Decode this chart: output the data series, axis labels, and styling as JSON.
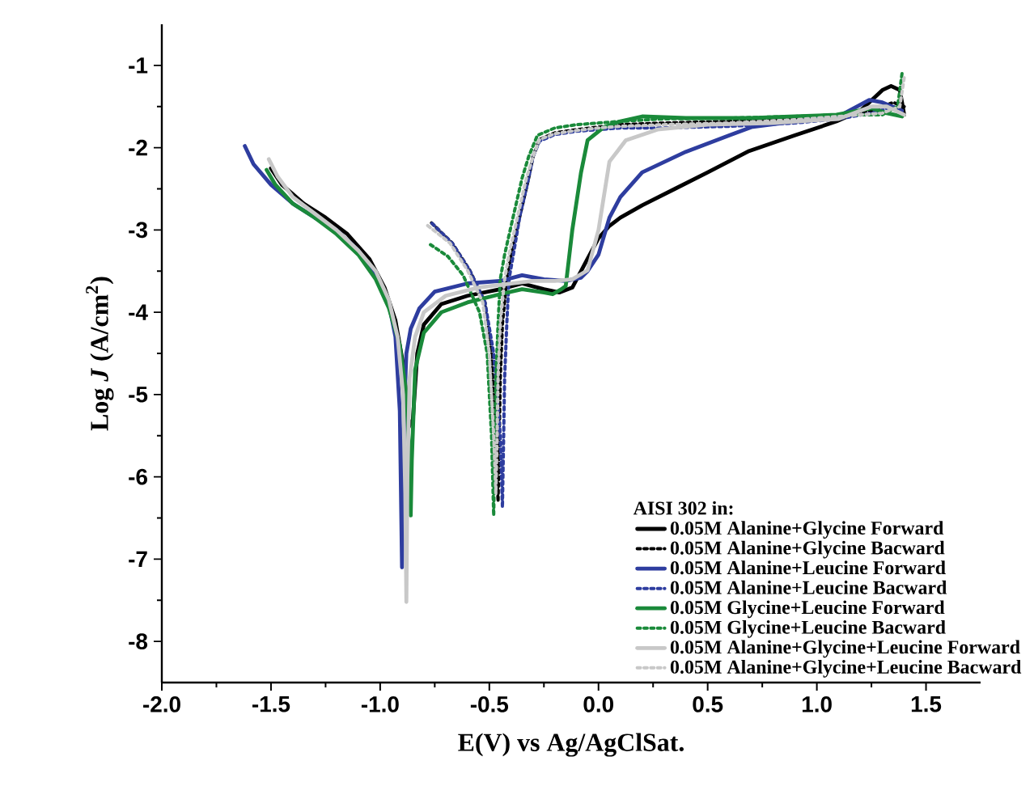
{
  "chart_data": {
    "type": "line",
    "xlabel": "E(V) vs Ag/AgClSat.",
    "ylabel": "Log *J* (A/cm$^{2}$)",
    "legend_title": "AISI 302 in:",
    "legend": "bottom right",
    "grid": false,
    "xlim": [
      -2.0,
      1.75
    ],
    "ylim": [
      -8.5,
      -0.5
    ],
    "xticks": [
      {
        "value": -2,
        "label": "-2.0"
      },
      {
        "value": -1.5,
        "label": "-1.5"
      },
      {
        "value": -1,
        "label": "-1.0"
      },
      {
        "value": -0.5,
        "label": "-0.5"
      },
      {
        "value": 0,
        "label": "0.0"
      },
      {
        "value": 0.5,
        "label": "0.5"
      },
      {
        "value": 1,
        "label": "1.0"
      },
      {
        "value": 1.5,
        "label": "1.5"
      }
    ],
    "yticks": [
      -8,
      -7,
      -6,
      -5,
      -4,
      -3,
      -2,
      -1
    ],
    "series": [
      {
        "name": "0.05M Alanine+Glycine Forward",
        "color": "#000000",
        "line_style": "solid",
        "x": [
          -1.5,
          -1.45,
          -1.35,
          -1.25,
          -1.15,
          -1.05,
          -0.98,
          -0.93,
          -0.89,
          -0.87,
          -0.86,
          -0.85,
          -0.83,
          -0.8,
          -0.72,
          -0.6,
          -0.45,
          -0.35,
          -0.25,
          -0.18,
          -0.12,
          -0.05,
          0.0,
          0.05,
          0.1,
          0.2,
          0.35,
          0.5,
          0.69,
          0.9,
          1.09,
          1.2,
          1.3,
          1.34,
          1.38,
          1.4
        ],
        "values": [
          -2.25,
          -2.45,
          -2.68,
          -2.85,
          -3.05,
          -3.35,
          -3.7,
          -4.1,
          -4.7,
          -5.4,
          null,
          -5.3,
          -4.5,
          -4.15,
          -3.9,
          -3.8,
          -3.72,
          -3.65,
          -3.72,
          -3.76,
          -3.7,
          -3.35,
          -3.1,
          -2.95,
          -2.85,
          -2.7,
          -2.5,
          -2.3,
          -2.04,
          -1.85,
          -1.68,
          -1.55,
          -1.3,
          -1.25,
          -1.3,
          -1.6
        ]
      },
      {
        "name": "0.05M Alanine+Glycine Bacward",
        "color": "#000000",
        "line_style": "dotted",
        "x": [
          1.4,
          1.35,
          1.25,
          1.1,
          0.9,
          0.6,
          0.3,
          0.1,
          0.0,
          -0.1,
          -0.2,
          -0.27,
          -0.3,
          -0.32,
          -0.36,
          -0.4,
          -0.42,
          -0.44,
          -0.45,
          -0.455,
          -0.46,
          -0.47,
          -0.49,
          -0.52,
          -0.59,
          -0.67,
          -0.77
        ],
        "values": [
          -1.5,
          -1.45,
          -1.55,
          -1.6,
          -1.65,
          -1.68,
          -1.7,
          -1.72,
          -1.75,
          -1.78,
          -1.82,
          -1.9,
          -2.11,
          -2.37,
          -2.83,
          -3.3,
          -3.6,
          -4.14,
          -4.8,
          -5.6,
          -6.3,
          -5.5,
          -4.5,
          -3.88,
          -3.49,
          -3.16,
          -2.9
        ]
      },
      {
        "name": "0.05M Alanine+Leucine Forward",
        "color": "#2e3d9f",
        "line_style": "solid",
        "x": [
          -1.62,
          -1.58,
          -1.5,
          -1.4,
          -1.3,
          -1.2,
          -1.1,
          -1.02,
          -0.96,
          -0.93,
          -0.91,
          -0.9,
          -0.89,
          -0.88,
          -0.86,
          -0.82,
          -0.75,
          -0.6,
          -0.45,
          -0.35,
          -0.25,
          -0.15,
          -0.08,
          -0.05,
          0.0,
          0.05,
          0.1,
          0.2,
          0.4,
          0.6,
          0.7,
          0.9,
          1.1,
          1.24,
          1.3,
          1.39
        ],
        "values": [
          -1.98,
          -2.2,
          -2.45,
          -2.68,
          -2.85,
          -3.0,
          -3.25,
          -3.55,
          -3.9,
          -4.3,
          -5.2,
          -7.1,
          -5.2,
          -4.5,
          -4.2,
          -3.95,
          -3.75,
          -3.65,
          -3.62,
          -3.55,
          -3.6,
          -3.62,
          -3.58,
          -3.5,
          -3.3,
          -2.85,
          -2.6,
          -2.3,
          -2.05,
          -1.85,
          -1.75,
          -1.68,
          -1.62,
          -1.42,
          -1.45,
          -1.55
        ]
      },
      {
        "name": "0.05M Alanine+Leucine Bacward",
        "color": "#2e3d9f",
        "line_style": "dotted",
        "x": [
          1.39,
          1.35,
          1.25,
          1.1,
          0.9,
          0.6,
          0.3,
          0.1,
          0.0,
          -0.1,
          -0.2,
          -0.27,
          -0.3,
          -0.32,
          -0.36,
          -0.39,
          -0.41,
          -0.42,
          -0.43,
          -0.435,
          -0.44,
          -0.45,
          -0.48,
          -0.52,
          -0.59,
          -0.67,
          -0.77
        ],
        "values": [
          -1.55,
          -1.5,
          -1.58,
          -1.65,
          -1.7,
          -1.74,
          -1.76,
          -1.76,
          -1.78,
          -1.8,
          -1.84,
          -1.92,
          -2.11,
          -2.37,
          -2.83,
          -3.3,
          -3.6,
          -4.14,
          -4.8,
          -5.6,
          -6.37,
          -5.5,
          -4.5,
          -3.88,
          -3.49,
          -3.16,
          -2.9
        ]
      },
      {
        "name": "0.05M Glycine+Leucine Forward",
        "color": "#1a8a3a",
        "line_style": "solid",
        "x": [
          -1.52,
          -1.48,
          -1.4,
          -1.3,
          -1.2,
          -1.1,
          -1.02,
          -0.96,
          -0.91,
          -0.88,
          -0.865,
          -0.86,
          -0.855,
          -0.84,
          -0.8,
          -0.72,
          -0.6,
          -0.45,
          -0.35,
          -0.25,
          -0.21,
          -0.17,
          -0.15,
          -0.12,
          -0.08,
          -0.05,
          0.025,
          0.1,
          0.2,
          0.4,
          0.7,
          0.9,
          1.09,
          1.25,
          1.32,
          1.39
        ],
        "values": [
          -2.27,
          -2.45,
          -2.68,
          -2.85,
          -3.05,
          -3.3,
          -3.6,
          -3.95,
          -4.4,
          -5.0,
          -5.8,
          -6.47,
          -5.8,
          -4.7,
          -4.25,
          -4.0,
          -3.88,
          -3.78,
          -3.72,
          -3.76,
          -3.78,
          -3.72,
          -3.68,
          -3.0,
          -2.3,
          -1.91,
          -1.75,
          -1.68,
          -1.62,
          -1.64,
          -1.64,
          -1.62,
          -1.6,
          -1.52,
          -1.58,
          -1.62
        ]
      },
      {
        "name": "0.05M Glycine+Leucine Bacward",
        "color": "#1a8a3a",
        "line_style": "dotted",
        "x": [
          1.39,
          1.37,
          1.3,
          1.1,
          0.9,
          0.6,
          0.3,
          0.1,
          0.0,
          -0.1,
          -0.2,
          -0.28,
          -0.32,
          -0.35,
          -0.39,
          -0.43,
          -0.45,
          -0.46,
          -0.47,
          -0.475,
          -0.48,
          -0.49,
          -0.51,
          -0.545,
          -0.62,
          -0.69,
          -0.78
        ],
        "values": [
          -1.1,
          -1.5,
          -1.6,
          -1.6,
          -1.62,
          -1.64,
          -1.65,
          -1.68,
          -1.7,
          -1.72,
          -1.76,
          -1.85,
          -2.11,
          -2.37,
          -2.83,
          -3.3,
          -3.6,
          -4.14,
          -4.8,
          -5.6,
          -6.47,
          -5.5,
          -4.5,
          -4.0,
          -3.55,
          -3.32,
          -3.16
        ]
      },
      {
        "name": "0.05M Alanine+Glycine+Leucine Forward",
        "color": "#c8c8c8",
        "line_style": "solid",
        "x": [
          -1.51,
          -1.47,
          -1.4,
          -1.3,
          -1.2,
          -1.1,
          -1.02,
          -0.96,
          -0.92,
          -0.895,
          -0.885,
          -0.88,
          -0.875,
          -0.865,
          -0.84,
          -0.8,
          -0.7,
          -0.55,
          -0.4,
          -0.3,
          -0.2,
          -0.12,
          -0.05,
          0.0,
          0.05,
          0.125,
          0.27,
          0.5,
          0.8,
          1.1,
          1.25,
          1.32,
          1.4
        ],
        "values": [
          -2.14,
          -2.35,
          -2.6,
          -2.8,
          -3.0,
          -3.25,
          -3.5,
          -3.85,
          -4.3,
          -5.0,
          -6.2,
          -7.52,
          -6.0,
          -4.8,
          -4.3,
          -4.0,
          -3.8,
          -3.7,
          -3.65,
          -3.62,
          -3.62,
          -3.6,
          -3.49,
          -3.0,
          -2.17,
          -1.91,
          -1.78,
          -1.72,
          -1.7,
          -1.65,
          -1.5,
          -1.5,
          -1.6
        ]
      },
      {
        "name": "0.05M Alanine+Glycine+Leucine Bacward",
        "color": "#c8c8c8",
        "line_style": "dotted",
        "x": [
          1.4,
          1.38,
          1.3,
          1.1,
          0.9,
          0.6,
          0.3,
          0.1,
          0.0,
          -0.1,
          -0.2,
          -0.27,
          -0.3,
          -0.33,
          -0.37,
          -0.41,
          -0.43,
          -0.45,
          -0.46,
          -0.465,
          -0.47,
          -0.48,
          -0.5,
          -0.53,
          -0.6,
          -0.68,
          -0.79
        ],
        "values": [
          -1.15,
          -1.5,
          -1.58,
          -1.62,
          -1.66,
          -1.7,
          -1.72,
          -1.74,
          -1.76,
          -1.79,
          -1.83,
          -1.9,
          -2.11,
          -2.37,
          -2.83,
          -3.3,
          -3.6,
          -4.14,
          -4.8,
          -5.6,
          -6.2,
          -5.5,
          -4.5,
          -3.88,
          -3.49,
          -3.16,
          -2.93
        ]
      }
    ]
  }
}
